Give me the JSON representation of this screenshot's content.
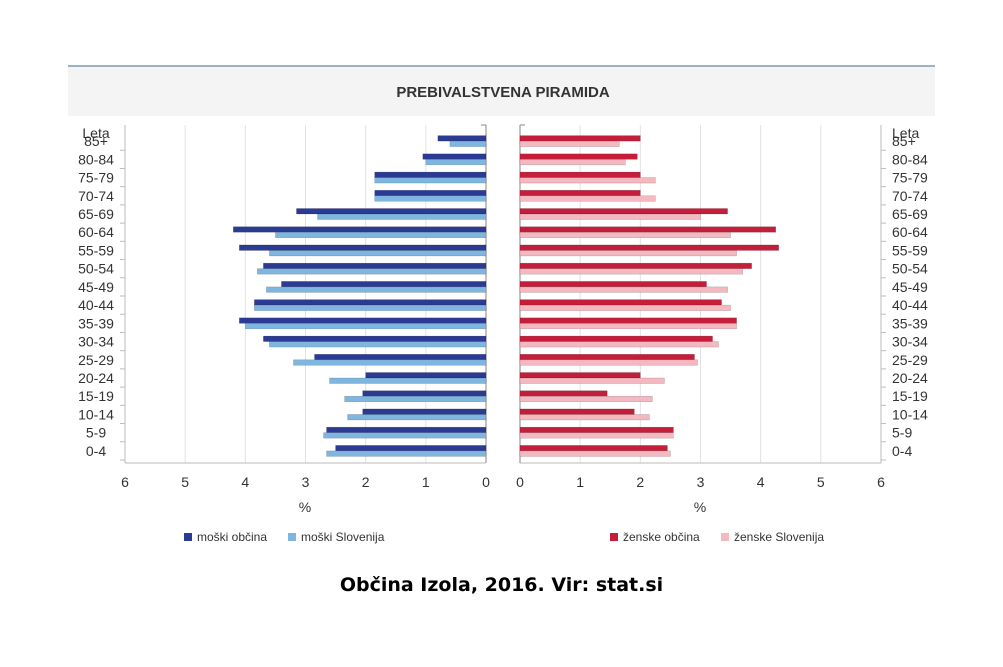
{
  "caption": "Občina Izola, 2016. Vir: stat.si",
  "chart_data": {
    "type": "bar",
    "orientation": "horizontal-pyramid",
    "title": "PREBIVALSTVENA PIRAMIDA",
    "category_axis_label": "Leta",
    "categories": [
      "0-4",
      "5-9",
      "10-14",
      "15-19",
      "20-24",
      "25-29",
      "30-34",
      "35-39",
      "40-44",
      "45-49",
      "50-54",
      "55-59",
      "60-64",
      "65-69",
      "70-74",
      "75-79",
      "80-84",
      "85+"
    ],
    "xlabel": "%",
    "xlim": [
      0,
      6
    ],
    "x_ticks": [
      "0",
      "1",
      "2",
      "3",
      "4",
      "5",
      "6"
    ],
    "grid": true,
    "legend_placement": "bottom",
    "colors": {
      "moski_obcina": "#2b3a93",
      "moski_slovenija": "#7fb6df",
      "zenske_obcina": "#c41e3a",
      "zenske_slovenija": "#f4b8c1"
    },
    "left": {
      "series": [
        {
          "name": "moški občina",
          "color": "#2b3a93",
          "values": [
            2.5,
            2.65,
            2.05,
            2.05,
            2.0,
            2.85,
            3.7,
            4.1,
            3.85,
            3.4,
            3.7,
            4.1,
            4.2,
            3.15,
            1.85,
            1.85,
            1.05,
            0.8
          ]
        },
        {
          "name": "moški Slovenija",
          "color": "#7fb6df",
          "values": [
            2.65,
            2.7,
            2.3,
            2.35,
            2.6,
            3.2,
            3.6,
            4.0,
            3.85,
            3.65,
            3.8,
            3.6,
            3.5,
            2.8,
            1.85,
            1.85,
            1.0,
            0.6
          ]
        }
      ]
    },
    "right": {
      "series": [
        {
          "name": "ženske občina",
          "color": "#c41e3a",
          "values": [
            2.45,
            2.55,
            1.9,
            1.45,
            2.0,
            2.9,
            3.2,
            3.6,
            3.35,
            3.1,
            3.85,
            4.3,
            4.25,
            3.45,
            2.0,
            2.0,
            1.95,
            2.0
          ]
        },
        {
          "name": "ženske Slovenija",
          "color": "#f4b8c1",
          "values": [
            2.5,
            2.55,
            2.15,
            2.2,
            2.4,
            2.95,
            3.3,
            3.6,
            3.5,
            3.45,
            3.7,
            3.6,
            3.5,
            3.0,
            2.25,
            2.25,
            1.75,
            1.65
          ]
        }
      ]
    }
  }
}
